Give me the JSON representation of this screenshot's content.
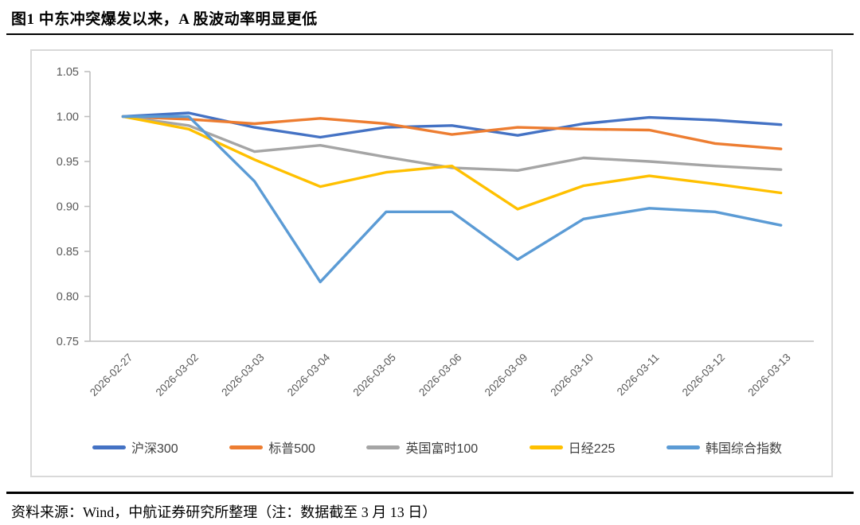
{
  "page": {
    "title": "图1  中东冲突爆发以来，A 股波动率明显更低",
    "source_note": "资料来源：Wind，中航证券研究所整理（注：数据截至 3 月 13 日）"
  },
  "chart_data": {
    "type": "line",
    "title": "",
    "xlabel": "",
    "ylabel": "",
    "x": [
      "2026-02-27",
      "2026-03-02",
      "2026-03-03",
      "2026-03-04",
      "2026-03-05",
      "2026-03-06",
      "2026-03-09",
      "2026-03-10",
      "2026-03-11",
      "2026-03-12",
      "2026-03-13"
    ],
    "series": [
      {
        "name": "沪深300",
        "color": "#4472C4",
        "values": [
          1.0,
          1.004,
          0.988,
          0.977,
          0.988,
          0.99,
          0.979,
          0.992,
          0.999,
          0.996,
          0.991
        ]
      },
      {
        "name": "标普500",
        "color": "#ED7D31",
        "values": [
          1.0,
          0.997,
          0.992,
          0.998,
          0.992,
          0.98,
          0.988,
          0.986,
          0.985,
          0.97,
          0.964
        ]
      },
      {
        "name": "英国富时100",
        "color": "#A5A5A5",
        "values": [
          1.0,
          0.99,
          0.961,
          0.968,
          0.955,
          0.943,
          0.94,
          0.954,
          0.95,
          0.945,
          0.941
        ]
      },
      {
        "name": "日经225",
        "color": "#FFC000",
        "values": [
          1.0,
          0.986,
          0.952,
          0.922,
          0.938,
          0.945,
          0.897,
          0.923,
          0.934,
          0.925,
          0.915
        ]
      },
      {
        "name": "韩国综合指数",
        "color": "#5B9BD5",
        "values": [
          1.0,
          1.0,
          0.928,
          0.816,
          0.894,
          0.894,
          0.841,
          0.886,
          0.898,
          0.894,
          0.879
        ]
      }
    ],
    "ylim": [
      0.75,
      1.05
    ],
    "ytick_step": 0.05,
    "ytick_labels": [
      "1.05",
      "1.00",
      "0.95",
      "0.90",
      "0.85",
      "0.80",
      "0.75"
    ],
    "grid": false,
    "legend_position": "bottom",
    "axis_color": "#bfbfbf",
    "tick_label_color": "#595959"
  }
}
